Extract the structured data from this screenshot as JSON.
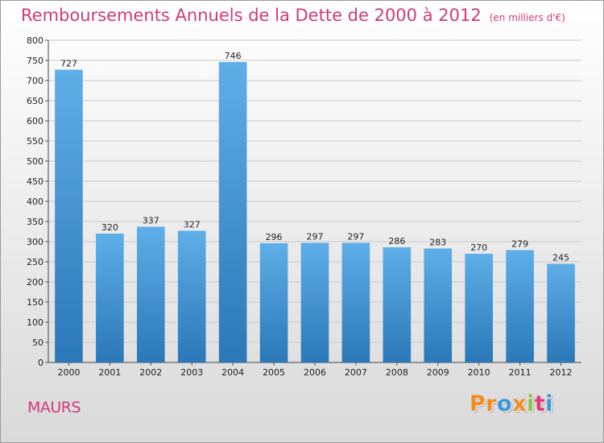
{
  "header": {
    "title": "Remboursements Annuels de la Dette de 2000 à 2012",
    "unit": "(en milliers d'€)"
  },
  "footer": {
    "commune": "MAURS",
    "logo_text": "Proxiti",
    "logo_colors": [
      "#f28c1e",
      "#f28c1e",
      "#3a9ad9",
      "#f28c1e",
      "#8bc34a",
      "#e03a7a",
      "#3a9ad9"
    ]
  },
  "colors": {
    "bar_top": "#5eaee8",
    "bar_bottom": "#2a78b8",
    "title": "#d03a78",
    "grid": "#c8c8c8"
  },
  "chart_data": {
    "type": "bar",
    "title": "Remboursements Annuels de la Dette de 2000 à 2012",
    "xlabel": "",
    "ylabel": "",
    "categories": [
      "2000",
      "2001",
      "2002",
      "2003",
      "2004",
      "2005",
      "2006",
      "2007",
      "2008",
      "2009",
      "2010",
      "2011",
      "2012"
    ],
    "values": [
      727,
      320,
      337,
      327,
      746,
      296,
      297,
      297,
      286,
      283,
      270,
      279,
      245
    ],
    "ylim": [
      0,
      800
    ],
    "yticks": [
      0,
      50,
      100,
      150,
      200,
      250,
      300,
      350,
      400,
      450,
      500,
      550,
      600,
      650,
      700,
      750,
      800
    ],
    "grid": true,
    "data_labels": true
  }
}
